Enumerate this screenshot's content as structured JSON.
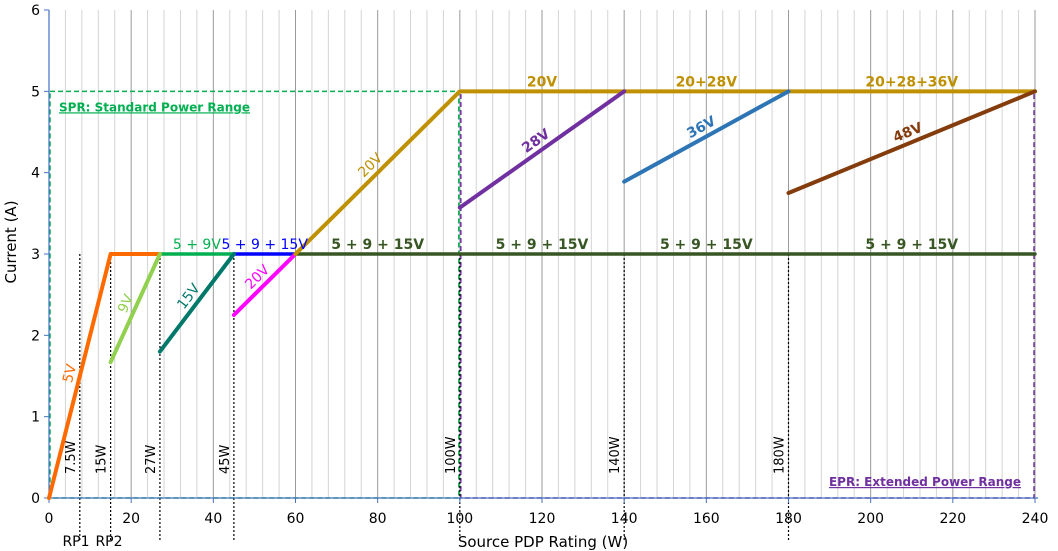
{
  "chart_data": {
    "type": "line",
    "xlabel": "Source PDP Rating (W)",
    "ylabel": "Current (A)",
    "xlim": [
      0,
      240
    ],
    "ylim": [
      0,
      6
    ],
    "x_ticks": [
      0,
      20,
      40,
      60,
      80,
      100,
      120,
      140,
      160,
      180,
      200,
      220,
      240
    ],
    "y_ticks": [
      0,
      1,
      2,
      3,
      4,
      5,
      6
    ],
    "grid": "vertical lines every 4 W",
    "series": [
      {
        "name": "5V",
        "color": "#ff6a00",
        "points": [
          [
            0,
            0
          ],
          [
            15,
            3
          ],
          [
            27,
            3
          ]
        ]
      },
      {
        "name": "9V",
        "color": "#92d050",
        "points": [
          [
            15,
            1.67
          ],
          [
            27,
            3
          ]
        ]
      },
      {
        "name": "15V",
        "color": "#00796b",
        "points": [
          [
            27,
            1.8
          ],
          [
            45,
            3
          ]
        ]
      },
      {
        "name": "20V",
        "color": "#ff00ff",
        "points": [
          [
            45,
            2.25
          ],
          [
            60,
            3
          ]
        ]
      },
      {
        "name": "20V",
        "color": "#bf9000",
        "points": [
          [
            60,
            3
          ],
          [
            100,
            5
          ],
          [
            240,
            5
          ]
        ]
      },
      {
        "name": "28V",
        "color": "#7030a0",
        "points": [
          [
            100,
            3.57
          ],
          [
            140,
            5
          ]
        ]
      },
      {
        "name": "36V",
        "color": "#2e75b6",
        "points": [
          [
            140,
            3.89
          ],
          [
            180,
            5
          ]
        ]
      },
      {
        "name": "48V",
        "color": "#843c0c",
        "points": [
          [
            180,
            3.75
          ],
          [
            240,
            5
          ]
        ]
      }
    ],
    "segments": [
      {
        "label": "5 + 9V",
        "color": "#00b050",
        "points": [
          [
            27,
            3
          ],
          [
            45,
            3
          ]
        ]
      },
      {
        "label": "5 + 9 + 15V",
        "color": "#0000ff",
        "points": [
          [
            45,
            3
          ],
          [
            60,
            3
          ]
        ]
      },
      {
        "label": "5 + 9 + 15V",
        "color": "#375623",
        "points": [
          [
            60,
            3
          ],
          [
            240,
            3
          ]
        ]
      }
    ],
    "region_labels": [
      {
        "text": "5 + 9 + 15V",
        "color": "#375623",
        "x": 80,
        "y": 3
      },
      {
        "text": "5 + 9 + 15V",
        "color": "#375623",
        "x": 120,
        "y": 3
      },
      {
        "text": "5 + 9 + 15V",
        "color": "#375623",
        "x": 160,
        "y": 3
      },
      {
        "text": "5 + 9 + 15V",
        "color": "#375623",
        "x": 210,
        "y": 3
      },
      {
        "text": "20V",
        "color": "#bf9000",
        "x": 120,
        "y": 5
      },
      {
        "text": "20+28V",
        "color": "#bf9000",
        "x": 160,
        "y": 5
      },
      {
        "text": "20+28+36V",
        "color": "#bf9000",
        "x": 210,
        "y": 5
      }
    ],
    "power_markers": [
      {
        "label": "7.5W",
        "x": 7.5
      },
      {
        "label": "15W",
        "x": 15
      },
      {
        "label": "27W",
        "x": 27
      },
      {
        "label": "45W",
        "x": 45
      },
      {
        "label": "100W",
        "x": 100
      },
      {
        "label": "140W",
        "x": 140
      },
      {
        "label": "180W",
        "x": 180
      }
    ],
    "rp_labels": [
      "RP1",
      "RP2"
    ],
    "regions": [
      {
        "label": "SPR: Standard Power Range",
        "color": "#00b050",
        "x": [
          0,
          100
        ],
        "y": [
          0,
          5
        ]
      },
      {
        "label": "EPR: Extended Power Range",
        "color": "#7030a0",
        "x": [
          100,
          240
        ],
        "y": [
          0,
          5
        ]
      }
    ]
  }
}
